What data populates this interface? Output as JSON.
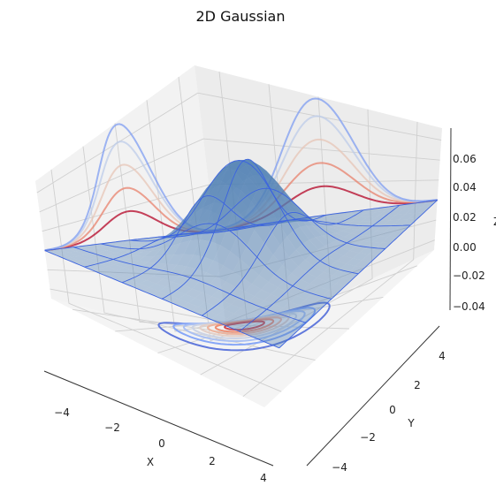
{
  "chart_data": {
    "type": "surface3d",
    "title": "2D Gaussian",
    "xlabel": "X",
    "ylabel": "Y",
    "zlabel": "Z",
    "xlim": [
      -5,
      5
    ],
    "ylim": [
      -5,
      5
    ],
    "zlim": [
      -0.05,
      0.072
    ],
    "x_ticks": [
      "−4",
      "−2",
      "0",
      "2",
      "4"
    ],
    "y_ticks": [
      "−4",
      "−2",
      "0",
      "2",
      "4"
    ],
    "z_ticks": [
      "−0.04",
      "−0.02",
      "0.00",
      "0.02",
      "0.04",
      "0.06"
    ],
    "grid": true,
    "surface": {
      "function": "bivariate normal density",
      "mean": [
        0,
        0
      ],
      "sigma": [
        1.5,
        1.5
      ],
      "peak_z": 0.0707,
      "face_color": "#4f7fb3",
      "edge_color": "#3b63e0"
    },
    "contour_projections": {
      "colormap": "coolwarm",
      "planes": [
        "z = -0.05",
        "x = -5",
        "y = 5"
      ]
    },
    "colors": {
      "pane": "#f2f2f2",
      "grid": "#cfcfcf"
    }
  }
}
